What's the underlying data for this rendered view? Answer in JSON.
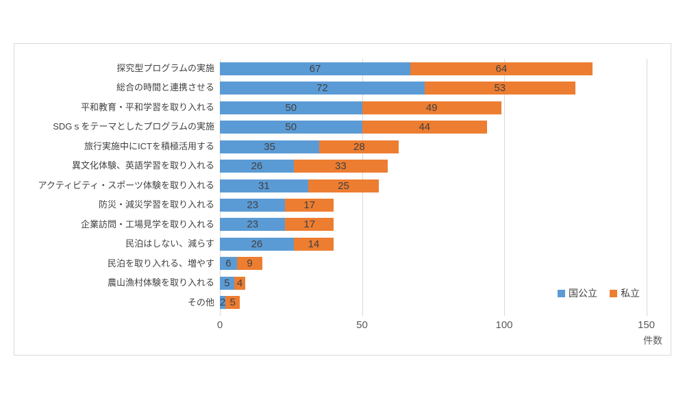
{
  "chart_data": {
    "type": "bar",
    "orientation": "horizontal",
    "stacked": true,
    "title": "",
    "xlabel": "件数",
    "xlim": [
      0,
      150
    ],
    "x_ticks": [
      0,
      50,
      100,
      150
    ],
    "grid": true,
    "legend_position": "bottom-right",
    "categories": [
      "探究型プログラムの実施",
      "総合の時間と連携させる",
      "平和教育・平和学習を取り入れる",
      "SDGｓをテーマとしたプログラムの実施",
      "旅行実施中にICTを積極活用する",
      "異文化体験、英語学習を取り入れる",
      "アクティビティ・スポーツ体験を取り入れる",
      "防災・減災学習を取り入れる",
      "企業訪問・工場見学を取り入れる",
      "民泊はしない、減らす",
      "民泊を取り入れる、増やす",
      "農山漁村体験を取り入れる",
      "その他"
    ],
    "series": [
      {
        "name": "国公立",
        "color": "#5b9bd5",
        "values": [
          67,
          72,
          50,
          50,
          35,
          26,
          31,
          23,
          23,
          26,
          6,
          5,
          2
        ]
      },
      {
        "name": "私立",
        "color": "#ed7d31",
        "values": [
          64,
          53,
          49,
          44,
          28,
          33,
          25,
          17,
          17,
          14,
          9,
          4,
          5
        ]
      }
    ],
    "style": {
      "frame_border_color": "#d9d9d9",
      "grid_color": "#d9d9d9",
      "tick_label_color": "#595959",
      "axis_label_color": "#595959",
      "category_label_color": "#404040",
      "value_label_color": "#404040"
    }
  }
}
